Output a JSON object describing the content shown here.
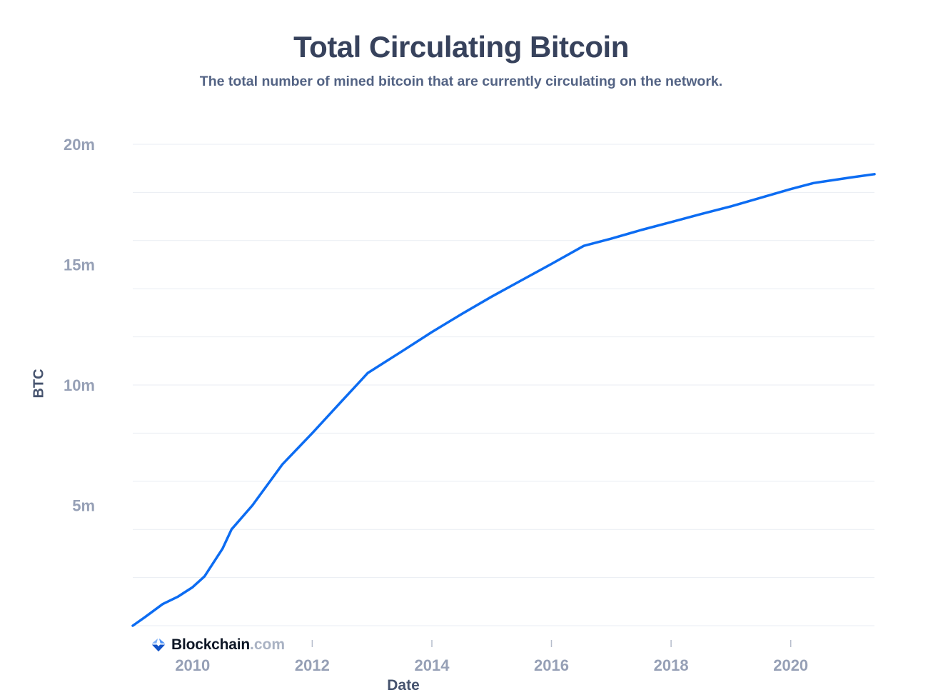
{
  "header": {
    "title": "Total Circulating Bitcoin",
    "subtitle": "The total number of mined bitcoin that are currently circulating on the network."
  },
  "branding": {
    "icon": "blockchain-diamond-icon",
    "logo_text": "Blockchain",
    "logo_suffix": ".com",
    "icon_colors": {
      "left_facet": "#7fb0f7",
      "right_facet": "#4f93f7",
      "bottom_facet": "#1253c8"
    }
  },
  "colors": {
    "line": "#0c6cf2",
    "grid": "#e9edf3",
    "tick_label": "#96a0b6",
    "tick_mark": "#b6bdcc",
    "axis_title": "#46536e",
    "title": "#37425c",
    "subtitle": "#536384",
    "background": "#ffffff"
  },
  "chart_data": {
    "type": "line",
    "title": "Total Circulating Bitcoin",
    "subtitle": "The total number of mined bitcoin that are currently circulating on the network.",
    "xlabel": "Date",
    "ylabel": "BTC",
    "xlim": [
      2009,
      2021.4
    ],
    "ylim": [
      0,
      20000000
    ],
    "y_unit": "BTC",
    "y_tick_format": "millions, suffix m",
    "grid": "horizontal",
    "legend": "none",
    "x_ticks": [
      2010,
      2012,
      2014,
      2016,
      2018,
      2020
    ],
    "y_gridline_values_m": [
      0,
      2,
      4,
      6,
      8,
      10,
      12,
      14,
      16,
      18,
      20
    ],
    "y_ticks": [
      {
        "value_m": 20,
        "label": "20m"
      },
      {
        "value_m": 15,
        "label": "15m"
      },
      {
        "value_m": 10,
        "label": "10m"
      },
      {
        "value_m": 5,
        "label": "5m"
      }
    ],
    "series": [
      {
        "name": "Total Circulating Bitcoin",
        "color": "#0c6cf2",
        "unit": "million BTC",
        "points_year_vs_millions": [
          [
            2009.0,
            0.0
          ],
          [
            2009.2,
            0.35
          ],
          [
            2009.5,
            0.9
          ],
          [
            2009.75,
            1.2
          ],
          [
            2010.0,
            1.6
          ],
          [
            2010.2,
            2.05
          ],
          [
            2010.5,
            3.2
          ],
          [
            2010.65,
            4.0
          ],
          [
            2011.0,
            5.0
          ],
          [
            2011.5,
            6.7
          ],
          [
            2012.0,
            8.0
          ],
          [
            2012.5,
            9.35
          ],
          [
            2012.93,
            10.5
          ],
          [
            2013.5,
            11.4
          ],
          [
            2014.0,
            12.2
          ],
          [
            2014.5,
            12.95
          ],
          [
            2015.0,
            13.67
          ],
          [
            2015.5,
            14.35
          ],
          [
            2016.0,
            15.03
          ],
          [
            2016.54,
            15.78
          ],
          [
            2017.0,
            16.08
          ],
          [
            2017.5,
            16.44
          ],
          [
            2018.0,
            16.77
          ],
          [
            2018.5,
            17.1
          ],
          [
            2019.0,
            17.42
          ],
          [
            2019.5,
            17.78
          ],
          [
            2020.0,
            18.14
          ],
          [
            2020.38,
            18.39
          ],
          [
            2021.0,
            18.62
          ],
          [
            2021.4,
            18.76
          ]
        ]
      }
    ],
    "annotations": []
  }
}
